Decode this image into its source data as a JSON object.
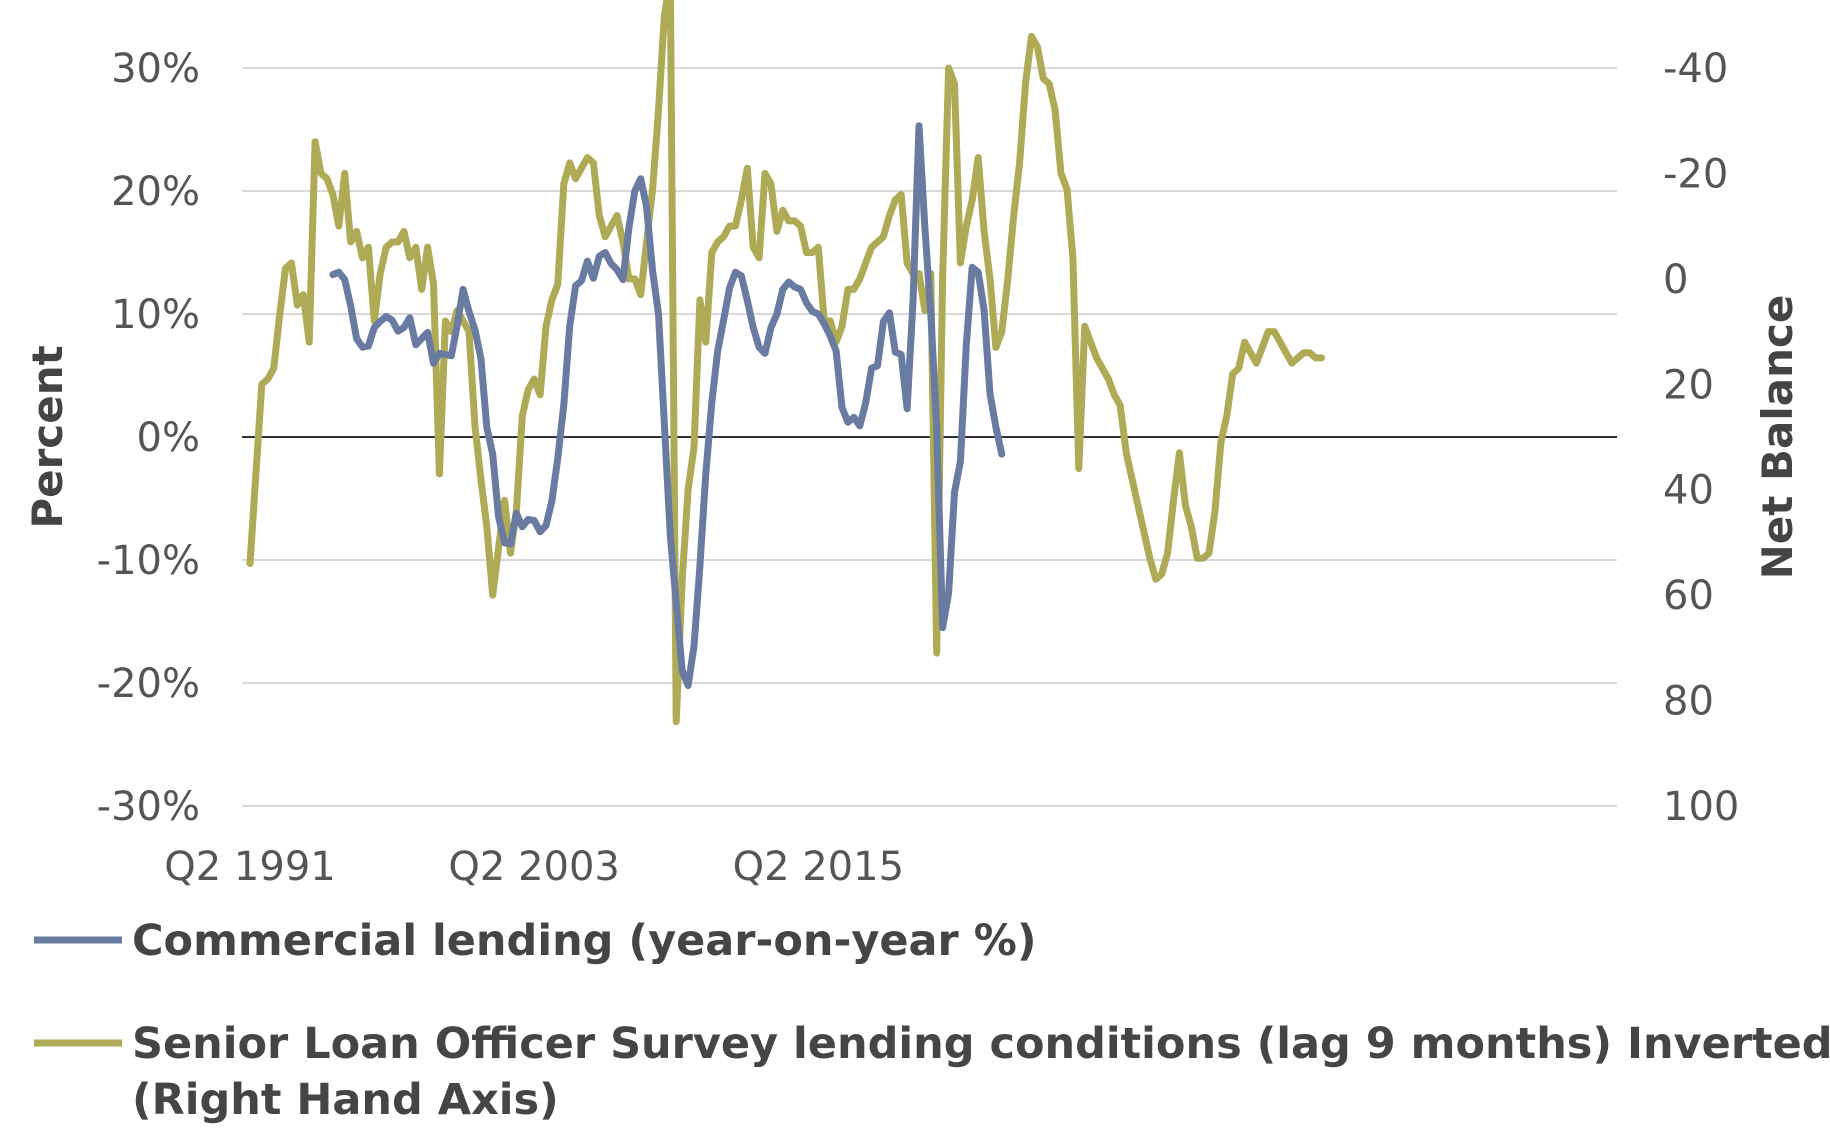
{
  "chart_data": {
    "type": "line",
    "title": "",
    "ylabel": "Percent",
    "y2label": "Net Balance",
    "ylim": [
      -30,
      30
    ],
    "y_ticks": [
      30,
      20,
      10,
      0,
      -10,
      -20,
      -30
    ],
    "y_tick_labels": [
      "30%",
      "20%",
      "10%",
      "0%",
      "-10%",
      "-20%",
      "-30%"
    ],
    "y2lim": [
      -40,
      100
    ],
    "y2_inverted": true,
    "y2_ticks": [
      -40,
      -20,
      0,
      20,
      40,
      60,
      80,
      100
    ],
    "y2_tick_labels": [
      "-40",
      "-20",
      "0",
      "20",
      "40",
      "60",
      "80",
      "100"
    ],
    "x_tick_labels": [
      "Q2 1991",
      "Q2 2003",
      "Q2 2015"
    ],
    "grid": true,
    "legend": "bottom",
    "colors": {
      "commercial": "#6a7ba2",
      "sloos": "#aeaa55",
      "grid": "#d9d9d9",
      "zero_line": "#333333"
    },
    "series": [
      {
        "name": "Commercial lending (year-on-year %)",
        "axis": "left",
        "start": "1994-Q4",
        "values": [
          13.2,
          13.4,
          12.8,
          10.7,
          8.0,
          7.3,
          7.4,
          8.9,
          9.4,
          9.8,
          9.5,
          8.6,
          8.9,
          9.7,
          7.5,
          8.0,
          8.5,
          6.0,
          6.8,
          6.7,
          6.6,
          9.1,
          12.0,
          10.2,
          8.7,
          6.4,
          0.8,
          -1.4,
          -6.5,
          -8.6,
          -8.7,
          -6.2,
          -7.3,
          -6.7,
          -6.8,
          -7.7,
          -7.2,
          -5.2,
          -1.7,
          2.6,
          9.0,
          12.3,
          12.7,
          14.3,
          12.9,
          14.7,
          15.0,
          14.1,
          13.6,
          12.8,
          17.0,
          20.0,
          21.0,
          18.7,
          13.5,
          10.0,
          1.0,
          -8.0,
          -13.5,
          -19.0,
          -20.2,
          -17.0,
          -10.5,
          -3.0,
          2.8,
          7.0,
          9.5,
          12.1,
          13.4,
          13.1,
          11.1,
          8.9,
          7.3,
          6.8,
          8.9,
          10.0,
          12.0,
          12.6,
          12.2,
          12.0,
          10.9,
          10.2,
          10.0,
          9.2,
          8.2,
          7.0,
          2.4,
          1.2,
          1.6,
          0.9,
          2.8,
          5.6,
          5.8,
          9.4,
          10.1,
          6.9,
          6.7,
          2.3,
          11.0,
          25.3,
          17.0,
          10.0,
          0.8,
          -15.5,
          -12.7,
          -4.5,
          -2.0,
          7.5,
          13.8,
          13.4,
          10.3,
          3.5,
          0.8,
          -1.4
        ]
      },
      {
        "name": "Senior Loan Officer Survey lending conditions (lag 9 months) Inverted (Right Hand Axis)",
        "axis": "right",
        "start": "1991-Q2",
        "values": [
          54,
          37,
          20,
          19,
          17,
          7,
          -2,
          -3,
          5,
          3,
          12,
          -26,
          -20,
          -19,
          -16,
          -10,
          -20,
          -7,
          -9,
          -4,
          -6,
          8,
          -1,
          -6,
          -7,
          -7,
          -9,
          -4,
          -6,
          2,
          -6,
          1,
          37,
          8,
          10,
          6,
          8,
          10,
          28,
          38,
          47,
          60,
          51,
          42,
          52,
          44,
          26,
          21,
          19,
          22,
          9,
          4,
          1,
          -18,
          -22,
          -19,
          -21,
          -23,
          -22,
          -12,
          -8,
          -10,
          -12,
          -7,
          0,
          0,
          3,
          -7,
          -17,
          -32,
          -50,
          -57,
          84,
          57,
          40,
          32,
          4,
          12,
          -5,
          -7,
          -8,
          -10,
          -10,
          -15,
          -21,
          -6,
          -4,
          -20,
          -18,
          -9,
          -13,
          -11,
          -11,
          -10,
          -5,
          -5,
          -6,
          8,
          8,
          12,
          9,
          2,
          2,
          0,
          -3,
          -6,
          -7,
          -8,
          -12,
          -15,
          -16,
          -3,
          -1,
          -1,
          6,
          -1,
          71,
          0,
          -40,
          -37,
          -3,
          -10,
          -15,
          -23,
          -9,
          0,
          13,
          10,
          0,
          -12,
          -22,
          -37,
          -46,
          -44,
          -38,
          -37,
          -32,
          -20,
          -17,
          -4,
          36,
          9,
          12,
          15,
          17,
          19,
          22,
          24,
          33,
          38,
          43,
          48,
          53,
          57,
          56,
          52,
          42,
          33,
          43,
          47,
          53,
          53,
          52,
          44,
          31,
          26,
          18,
          17,
          12,
          14,
          16,
          13,
          10,
          10,
          12,
          14,
          16,
          15,
          14,
          14,
          15,
          15
        ]
      }
    ]
  }
}
